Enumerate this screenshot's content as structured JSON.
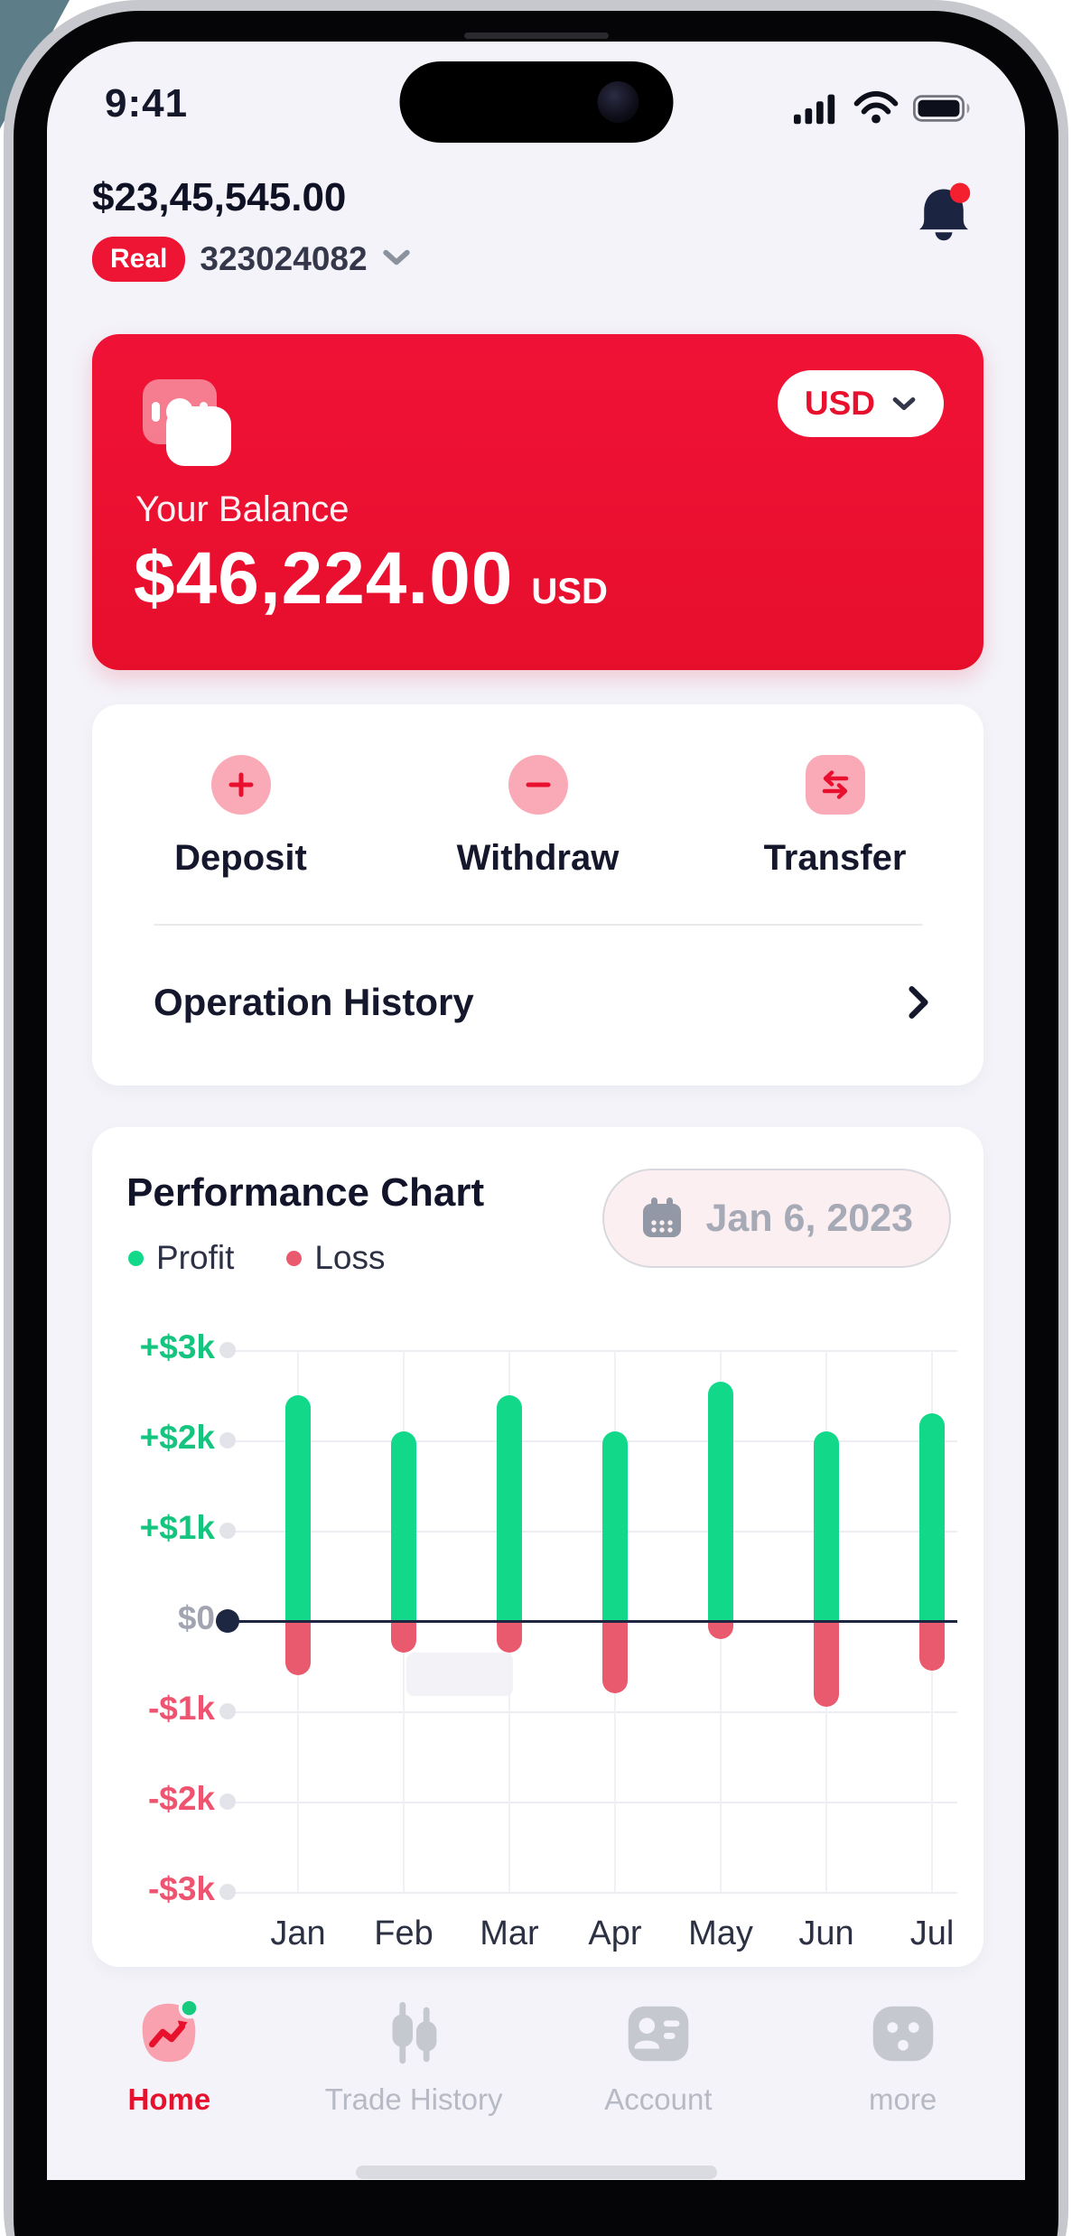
{
  "status_bar": {
    "time": "9:41",
    "icons": [
      "cellular-icon",
      "wifi-icon",
      "battery-icon"
    ]
  },
  "header": {
    "total_balance": "$23,45,545.00",
    "account_type_badge": "Real",
    "account_number": "323024082"
  },
  "balance_card": {
    "bg_color": "#EC1031",
    "wallet_icon": "wallet-icon",
    "currency_selector": "USD",
    "label": "Your Balance",
    "amount": "$46,224.00",
    "currency_suffix": "USD"
  },
  "actions_card": {
    "actions": [
      {
        "label": "Deposit",
        "icon": "plus-icon"
      },
      {
        "label": "Withdraw",
        "icon": "minus-icon"
      },
      {
        "label": "Transfer",
        "icon": "swap-arrows-icon"
      }
    ],
    "operation_history_label": "Operation History"
  },
  "chart_card": {
    "title": "Performance Chart",
    "legend": [
      {
        "label": "Profit",
        "color": "#12D98A"
      },
      {
        "label": "Loss",
        "color": "#EA5A6E"
      }
    ],
    "date_button": {
      "icon": "calendar-icon",
      "value": "Jan 6, 2023"
    }
  },
  "chart_data": {
    "type": "bar",
    "title": "Performance Chart",
    "categories": [
      "Jan",
      "Feb",
      "Mar",
      "Apr",
      "May",
      "Jun",
      "Jul"
    ],
    "series": [
      {
        "name": "Profit",
        "color": "#12D98A",
        "values": [
          2500,
          2100,
          2500,
          2100,
          2650,
          2100,
          2300
        ]
      },
      {
        "name": "Loss",
        "color": "#EA5A6E",
        "values": [
          -600,
          -350,
          -350,
          -800,
          -200,
          -950,
          -550
        ]
      }
    ],
    "y_ticks": [
      {
        "label": "+$3k",
        "value": 3000
      },
      {
        "label": "+$2k",
        "value": 2000
      },
      {
        "label": "+$1k",
        "value": 1000
      },
      {
        "label": "$0",
        "value": 0
      },
      {
        "label": "-$1k",
        "value": -1000
      },
      {
        "label": "-$2k",
        "value": -2000
      },
      {
        "label": "-$3k",
        "value": -3000
      }
    ],
    "ylim": [
      -3000,
      3000
    ],
    "grid": true,
    "legend_position": "top-left"
  },
  "bottom_nav": {
    "items": [
      {
        "label": "Home",
        "icon": "home-trend-icon",
        "active": true
      },
      {
        "label": "Trade History",
        "icon": "candlestick-icon",
        "active": false
      },
      {
        "label": "Account",
        "icon": "id-card-icon",
        "active": false
      },
      {
        "label": "more",
        "icon": "dots-icon",
        "active": false
      }
    ]
  }
}
